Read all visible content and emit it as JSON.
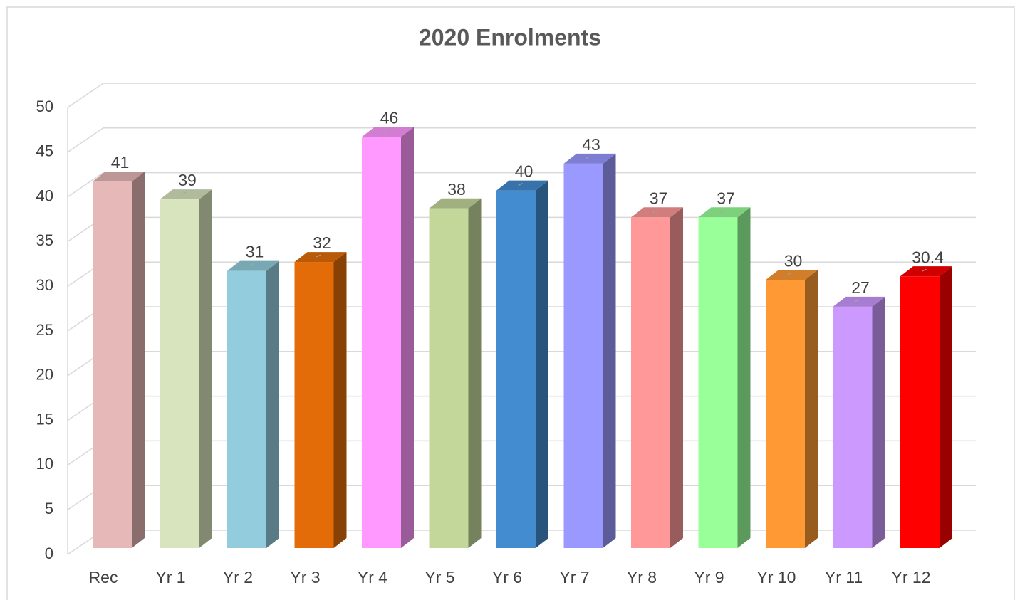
{
  "chart_data": {
    "type": "bar3d",
    "title": "2020 Enrolments",
    "categories": [
      "Rec",
      "Yr 1",
      "Yr 2",
      "Yr 3",
      "Yr 4",
      "Yr 5",
      "Yr 6",
      "Yr 7",
      "Yr 8",
      "Yr 9",
      "Yr 10",
      "Yr 11",
      "Yr 12"
    ],
    "values": [
      41,
      39,
      31,
      32,
      46,
      38,
      40,
      43,
      37,
      37,
      30,
      27,
      30.4
    ],
    "colors": [
      "#e6b8b7",
      "#d7e4bd",
      "#93cddd",
      "#e36c09",
      "#ff99ff",
      "#c4d79b",
      "#438ccf",
      "#9999ff",
      "#ff9999",
      "#99ff99",
      "#ff9933",
      "#cc99ff",
      "#ff0000"
    ],
    "ylim": [
      0,
      50
    ],
    "yticks": [
      0,
      5,
      10,
      15,
      20,
      25,
      30,
      35,
      40,
      45,
      50
    ],
    "grid": true
  }
}
